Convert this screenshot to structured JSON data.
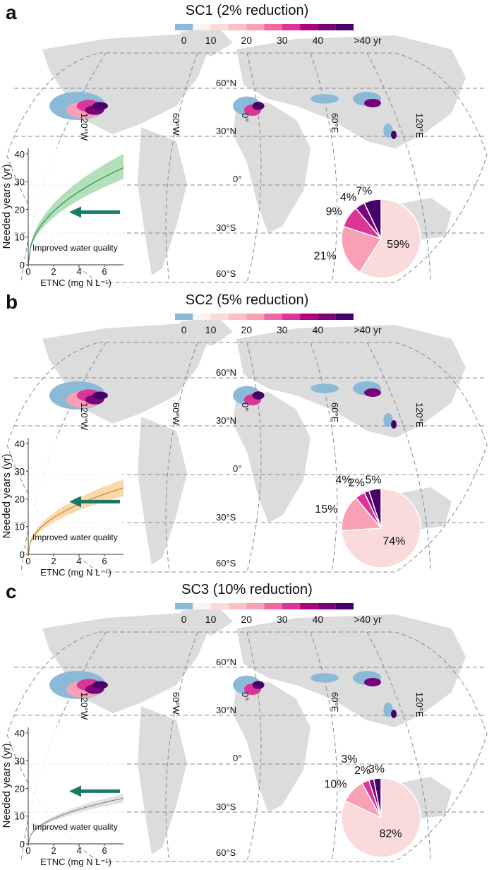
{
  "colorbar": {
    "colors": [
      "#8bbad9",
      "#fdf2ee",
      "#fbdadb",
      "#fbc0c0",
      "#f8a0b6",
      "#f267a1",
      "#dd3497",
      "#ae017e",
      "#7a0177",
      "#49006a"
    ],
    "tick_labels": [
      "0",
      "10",
      "20",
      "30",
      "40",
      ">40 yr"
    ]
  },
  "map_labels": {
    "lat": [
      "60°N",
      "30°N",
      "0°",
      "30°S",
      "60°S"
    ],
    "lon": [
      "120°W",
      "60°W",
      "0°",
      "60°E",
      "120°E"
    ]
  },
  "chart_data": [
    {
      "panel": "a",
      "type": "pie",
      "title": "SC1 (2% reduction)",
      "pie": {
        "labels": [
          "0-10",
          "10-20",
          "20-30",
          "30-40",
          ">40"
        ],
        "values": [
          59,
          21,
          9,
          4,
          7
        ],
        "value_labels": [
          "59%",
          "21%",
          "9%",
          "4%",
          "7%"
        ]
      },
      "inset": {
        "type": "line",
        "xlabel": "ETNC (mg N L⁻¹)",
        "ylabel": "Needed years (yr)",
        "xlim": [
          0,
          7.5
        ],
        "ylim": [
          0,
          42
        ],
        "xticks": [
          "0",
          "2",
          "4",
          "6"
        ],
        "yticks": [
          "0",
          "10",
          "20",
          "30",
          "40"
        ],
        "curve_end": 35,
        "band_end": [
          31,
          40
        ],
        "color": "#2e8b57",
        "band_color": "#9fd8a8",
        "annotation": "Improved water quality"
      }
    },
    {
      "panel": "b",
      "type": "pie",
      "title": "SC2 (5% reduction)",
      "pie": {
        "labels": [
          "0-10",
          "10-20",
          "20-30",
          "30-40",
          ">40"
        ],
        "values": [
          74,
          15,
          4,
          2,
          5
        ],
        "value_labels": [
          "74%",
          "15%",
          "4%",
          "2%",
          "5%"
        ]
      },
      "inset": {
        "type": "line",
        "xlabel": "ETNC (mg N L⁻¹)",
        "ylabel": "Needed years (yr)",
        "xlim": [
          0,
          7.5
        ],
        "ylim": [
          0,
          42
        ],
        "xticks": [
          "0",
          "2",
          "4",
          "6"
        ],
        "yticks": [
          "0",
          "10",
          "20",
          "30",
          "40"
        ],
        "curve_end": 24,
        "band_end": [
          21,
          27
        ],
        "color": "#c8862e",
        "band_color": "#f9cf95",
        "annotation": "Improved water quality"
      }
    },
    {
      "panel": "c",
      "type": "pie",
      "title": "SC3 (10% reduction)",
      "pie": {
        "labels": [
          "0-10",
          "10-20",
          "20-30",
          "30-40",
          ">40"
        ],
        "values": [
          82,
          10,
          3,
          2,
          3
        ],
        "value_labels": [
          "82%",
          "10%",
          "3%",
          "2%",
          "3%"
        ]
      },
      "inset": {
        "type": "line",
        "xlabel": "ETNC (mg N L⁻¹)",
        "ylabel": "Needed years (yr)",
        "xlim": [
          0,
          7.5
        ],
        "ylim": [
          0,
          42
        ],
        "xticks": [
          "0",
          "2",
          "4",
          "6"
        ],
        "yticks": [
          "0",
          "10",
          "20",
          "30",
          "40"
        ],
        "curve_end": 16.5,
        "band_end": [
          15,
          18
        ],
        "color": "#888888",
        "band_color": "#d9d9d9",
        "annotation": "Improved water quality"
      }
    }
  ],
  "arrow_color": "#1a7a65",
  "pie_colors": [
    "#fbdadb",
    "#f8a0b6",
    "#dd3497",
    "#7a0177",
    "#49006a"
  ]
}
